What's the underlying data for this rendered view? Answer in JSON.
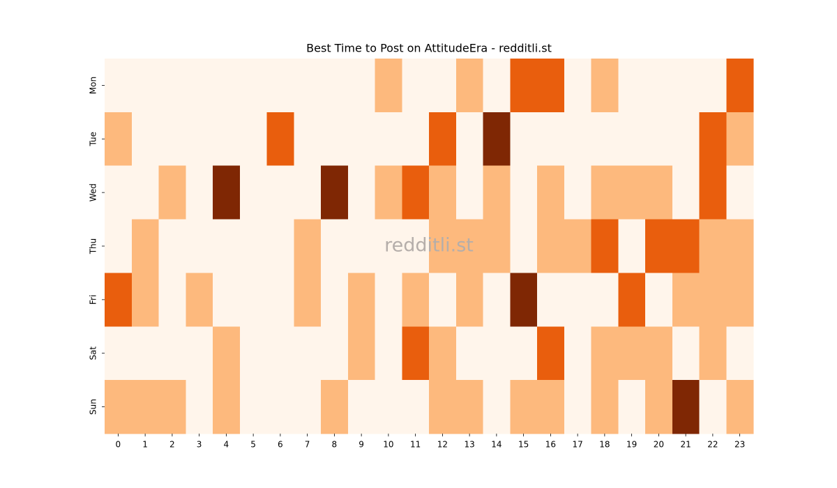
{
  "chart_data": {
    "type": "heatmap",
    "title": "Best Time to Post on AttitudeEra - redditli.st",
    "watermark": "redditli.st",
    "x_categories": [
      0,
      1,
      2,
      3,
      4,
      5,
      6,
      7,
      8,
      9,
      10,
      11,
      12,
      13,
      14,
      15,
      16,
      17,
      18,
      19,
      20,
      21,
      22,
      23
    ],
    "y_categories": [
      "Mon",
      "Tue",
      "Wed",
      "Thu",
      "Fri",
      "Sat",
      "Sun"
    ],
    "colors": [
      "#fff5eb",
      "#fdb97d",
      "#e95e0d",
      "#7f2704"
    ],
    "values": [
      [
        0,
        0,
        0,
        0,
        0,
        0,
        0,
        0,
        0,
        0,
        1,
        0,
        0,
        1,
        0,
        2,
        2,
        0,
        1,
        0,
        0,
        0,
        0,
        2
      ],
      [
        1,
        0,
        0,
        0,
        0,
        0,
        2,
        0,
        0,
        0,
        0,
        0,
        2,
        0,
        3,
        0,
        0,
        0,
        0,
        0,
        0,
        0,
        2,
        1
      ],
      [
        0,
        0,
        1,
        0,
        3,
        0,
        0,
        0,
        3,
        0,
        1,
        2,
        1,
        0,
        1,
        0,
        1,
        0,
        1,
        1,
        1,
        0,
        2,
        0
      ],
      [
        0,
        1,
        0,
        0,
        0,
        0,
        0,
        1,
        0,
        0,
        0,
        0,
        1,
        1,
        1,
        0,
        1,
        1,
        2,
        0,
        2,
        2,
        1,
        1
      ],
      [
        2,
        1,
        0,
        1,
        0,
        0,
        0,
        1,
        0,
        1,
        0,
        1,
        0,
        1,
        0,
        3,
        0,
        0,
        0,
        2,
        0,
        1,
        1,
        1
      ],
      [
        0,
        0,
        0,
        0,
        1,
        0,
        0,
        0,
        0,
        1,
        0,
        2,
        1,
        0,
        0,
        0,
        2,
        0,
        1,
        1,
        1,
        0,
        1,
        0
      ],
      [
        1,
        1,
        1,
        0,
        1,
        0,
        0,
        0,
        1,
        0,
        0,
        0,
        1,
        1,
        0,
        1,
        1,
        0,
        1,
        0,
        1,
        3,
        0,
        1
      ]
    ]
  }
}
